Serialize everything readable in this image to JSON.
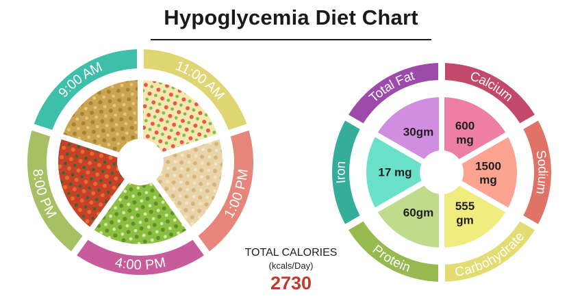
{
  "title": "Hypoglycemia Diet Chart",
  "meals": [
    {
      "time": "9:00 AM",
      "color": "#3dbfa9",
      "image": "millet-grain-dish",
      "palette": [
        "#c9a552",
        "#a68235",
        "#e3c87c"
      ]
    },
    {
      "time": "11:00 AM",
      "color": "#dfd673",
      "image": "fruit-salad-bowl",
      "palette": [
        "#f4e7b0",
        "#e25c45",
        "#7cbf4a"
      ]
    },
    {
      "time": "1:00 PM",
      "color": "#e6857a",
      "image": "chapati-stack",
      "palette": [
        "#e9d3a8",
        "#d4b47c",
        "#f2e4c4"
      ]
    },
    {
      "time": "4:00 PM",
      "color": "#c85b9b",
      "image": "sprouts-salad",
      "palette": [
        "#8cbf3f",
        "#5e8f2a",
        "#d8e9b0"
      ]
    },
    {
      "time": "8:00 PM",
      "color": "#a7c064",
      "image": "vegetable-curry",
      "palette": [
        "#c8402a",
        "#e0702f",
        "#2f6b2a"
      ]
    }
  ],
  "nutrients": [
    {
      "name": "Calcium",
      "value": "600 mg",
      "band_color": "#c2496a",
      "fill_color": "#ee7fa4"
    },
    {
      "name": "Sodium",
      "value": "1500 mg",
      "band_color": "#e07367",
      "fill_color": "#fca392"
    },
    {
      "name": "Carbohydrate",
      "value": "555 gm",
      "band_color": "#e3dc72",
      "fill_color": "#f1ec7e"
    },
    {
      "name": "Protein",
      "value": "60gm",
      "band_color": "#98b94f",
      "fill_color": "#bfdb8b"
    },
    {
      "name": "Iron",
      "value": "17 mg",
      "band_color": "#34ad9b",
      "fill_color": "#6be0c8"
    },
    {
      "name": "Total Fat",
      "value": "30gm",
      "band_color": "#9d4bab",
      "fill_color": "#d18ee1"
    }
  ],
  "total_calories": {
    "label": "TOTAL CALORIES",
    "unit": "(kcals/Day)",
    "value": "2730"
  }
}
